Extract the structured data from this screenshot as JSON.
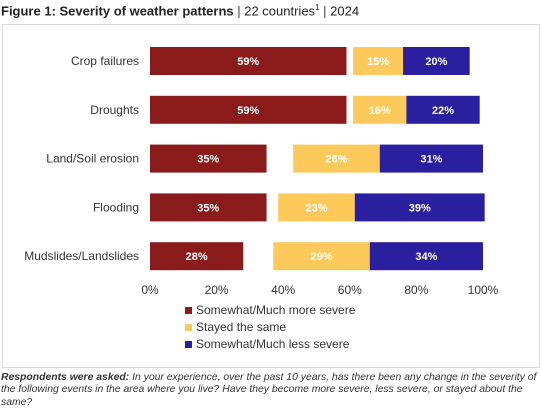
{
  "header": {
    "title_bold": "Figure 1: Severity of weather patterns",
    "sep1": " | ",
    "countries": "22 countries",
    "countries_sup": "1",
    "sep2": " | ",
    "year": "2024"
  },
  "footnote": {
    "lead": "Respondents were asked:",
    "question": " In your experience, over the past 10 years, has there been any change in the severity of the following events in the area where you live? Have they become more severe, less severe, or stayed about the same?"
  },
  "colors": {
    "more_severe": "#8b1a1a",
    "same": "#fdc95a",
    "less_severe": "#2a1f9e"
  },
  "chart_data": {
    "type": "bar",
    "orientation": "horizontal",
    "stacked": true,
    "categories": [
      "Crop failures",
      "Droughts",
      "Land/Soil erosion",
      "Flooding",
      "Mudslides/Landslides"
    ],
    "series": [
      {
        "name": "Somewhat/Much more severe",
        "values": [
          59,
          59,
          35,
          35,
          28
        ],
        "labels": [
          "59%",
          "59%",
          "35%",
          "35%",
          "28%"
        ],
        "color": "#8b1a1a"
      },
      {
        "name": "Stayed the same",
        "values": [
          15,
          16,
          26,
          23,
          29
        ],
        "labels": [
          "15%",
          "16%",
          "26%",
          "23%",
          "29%"
        ],
        "color": "#fdc95a"
      },
      {
        "name": "Somewhat/Much less severe",
        "values": [
          20,
          22,
          31,
          39,
          34
        ],
        "labels": [
          "20%",
          "22%",
          "31%",
          "39%",
          "34%"
        ],
        "color": "#2a1f9e"
      }
    ],
    "xlim": [
      0,
      100
    ],
    "x_ticks": [
      "0%",
      "20%",
      "40%",
      "60%",
      "80%",
      "100%"
    ],
    "legend_position": "bottom"
  }
}
